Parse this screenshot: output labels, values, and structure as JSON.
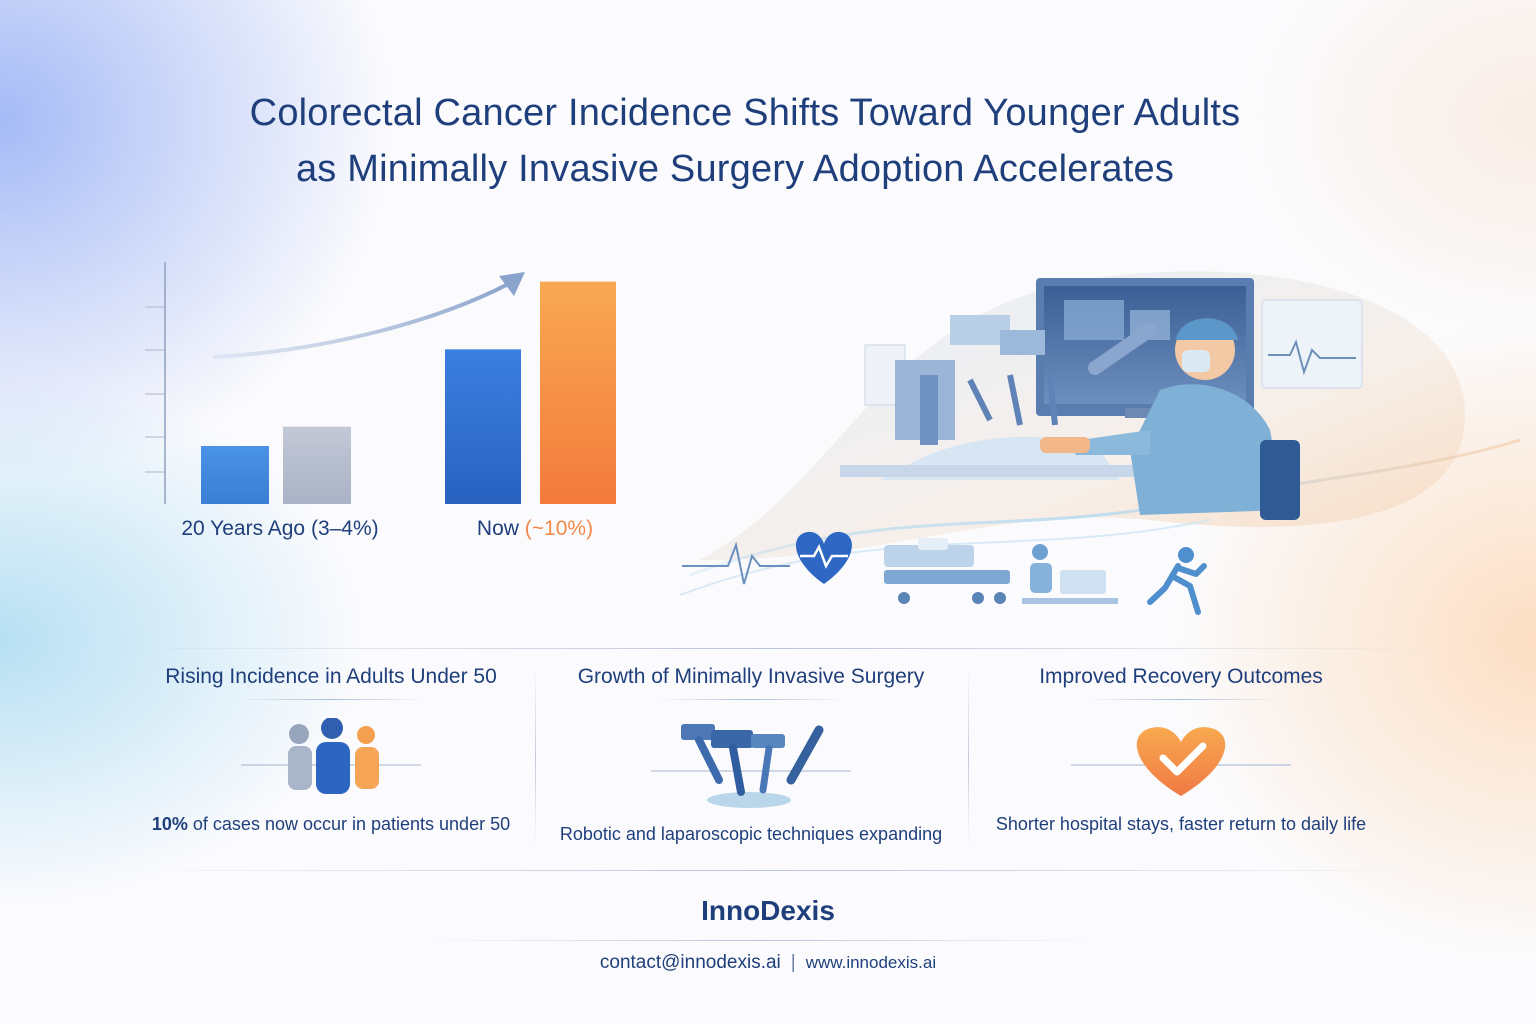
{
  "title": {
    "line1": "Colorectal Cancer Incidence Shifts Toward Younger Adults",
    "line2": "as Minimally Invasive Surgery Adoption Accelerates"
  },
  "chart_data": {
    "type": "bar",
    "categories": [
      "20 Years Ago (3–4%)",
      "Now (~10%)"
    ],
    "category_labels": {
      "first": "20 Years Ago (3–4%)",
      "second_prefix": "Now ",
      "second_accent": "(~10%)"
    },
    "series": [
      {
        "values": [
          3,
          8
        ]
      },
      {
        "values": [
          4,
          11.5
        ]
      }
    ],
    "colors": [
      "#3f86d8",
      "#b9c1d2",
      "#2f6fcf",
      "#f39248"
    ],
    "ylim": [
      0,
      12
    ],
    "grid": false,
    "trend_arrow": "rising"
  },
  "cards": [
    {
      "title": "Rising Incidence in Adults Under 50",
      "desc_strong": "10%",
      "desc_rest": " of cases now occur in patients under 50",
      "icon": "people-group-icon"
    },
    {
      "title": "Growth of Minimally Invasive Surgery",
      "desc": "Robotic and laparoscopic techniques expanding",
      "icon": "robotic-instruments-icon"
    },
    {
      "title": "Improved Recovery Outcomes",
      "desc": "Shorter hospital stays, faster return to daily life",
      "icon": "heart-check-icon"
    }
  ],
  "scene_icons": [
    "heartbeat-line-icon",
    "heart-pulse-icon",
    "hospital-bed-icon",
    "recovering-patient-icon",
    "running-person-icon"
  ],
  "footer": {
    "brand": "InnoDexis",
    "email": "contact@innodexis.ai",
    "separator": "|",
    "website": "www.innodexis.ai"
  },
  "palette": {
    "navy": "#1f3f7c",
    "blue": "#2f6fcf",
    "orange": "#f39248",
    "accent_orange_text": "#f2884a"
  }
}
